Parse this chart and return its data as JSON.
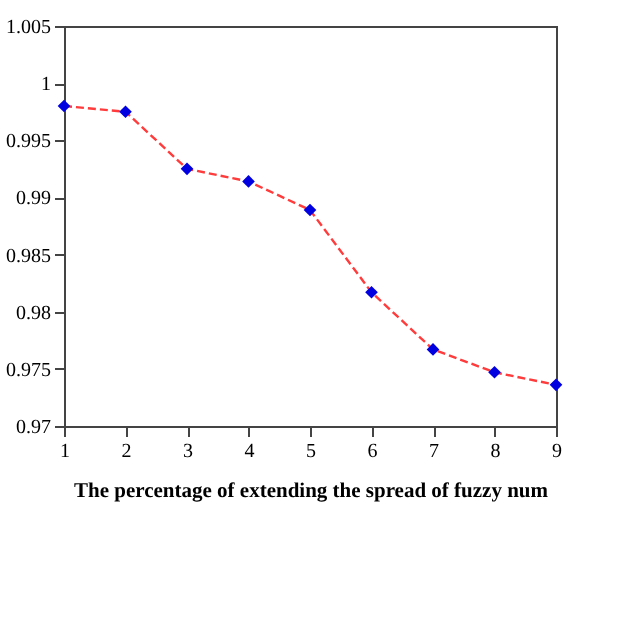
{
  "chart_data": {
    "type": "line",
    "xlabel": "The percentage of extending the spread of fuzzy num",
    "x": [
      1,
      2,
      3,
      4,
      5,
      6,
      7,
      8,
      9
    ],
    "series": [
      {
        "color": "#ff3b3b",
        "line_style": "dashed",
        "values": [
          0.998,
          0.9975,
          0.9925,
          0.9914,
          0.9889,
          0.9817,
          0.9767,
          0.9747,
          0.9736
        ]
      },
      {
        "type": "scatter",
        "color": "#0000e0",
        "marker": "diamond",
        "values": [
          0.998,
          0.9975,
          0.9925,
          0.9914,
          0.9889,
          0.9817,
          0.9767,
          0.9747,
          0.9736
        ]
      }
    ],
    "xlim": [
      1,
      9
    ],
    "xticks": [
      1,
      2,
      3,
      4,
      5,
      6,
      7,
      8,
      9
    ],
    "ylim": [
      0.97,
      1.005
    ],
    "yticks": [
      0.97,
      0.975,
      0.98,
      0.985,
      0.99,
      0.995,
      1,
      1.005
    ],
    "grid": false
  }
}
